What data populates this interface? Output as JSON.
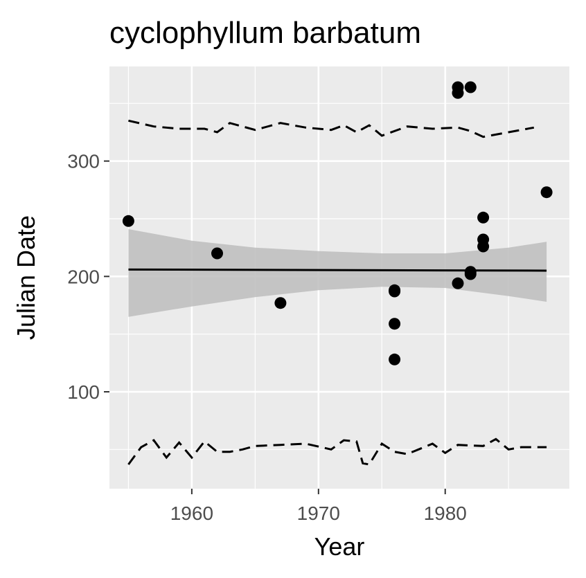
{
  "chart_data": {
    "type": "scatter",
    "title": "cyclophyllum barbatum",
    "xlabel": "Year",
    "ylabel": "Julian Date",
    "xlim": [
      1953.5,
      1989.8
    ],
    "ylim": [
      16,
      382
    ],
    "x_ticks": [
      1960,
      1970,
      1980
    ],
    "x_tick_labels": [
      "1960",
      "1970",
      "1980"
    ],
    "y_ticks": [
      100,
      200,
      300
    ],
    "y_tick_labels": [
      "100",
      "200",
      "300"
    ],
    "grid": true,
    "legend": "none",
    "colors": {
      "panel": "#ebebeb",
      "grid": "#ffffff",
      "points": "#000000",
      "trend": "#000000",
      "band": "#bdbdbd",
      "text": "#000000",
      "ticks": "#4d4d4d"
    },
    "points": [
      {
        "x": 1955,
        "y": 248
      },
      {
        "x": 1962,
        "y": 220
      },
      {
        "x": 1967,
        "y": 177
      },
      {
        "x": 1976,
        "y": 188
      },
      {
        "x": 1976,
        "y": 187
      },
      {
        "x": 1976,
        "y": 159
      },
      {
        "x": 1976,
        "y": 128
      },
      {
        "x": 1981,
        "y": 364
      },
      {
        "x": 1981,
        "y": 359
      },
      {
        "x": 1981,
        "y": 194
      },
      {
        "x": 1982,
        "y": 364
      },
      {
        "x": 1982,
        "y": 204
      },
      {
        "x": 1982,
        "y": 202
      },
      {
        "x": 1983,
        "y": 251
      },
      {
        "x": 1983,
        "y": 232
      },
      {
        "x": 1983,
        "y": 226
      },
      {
        "x": 1988,
        "y": 273
      }
    ],
    "trend_line": {
      "x": [
        1955,
        1988
      ],
      "y": [
        206,
        205
      ]
    },
    "confidence_band": {
      "x": [
        1955,
        1960,
        1965,
        1970,
        1975,
        1980,
        1985,
        1988
      ],
      "lower": [
        165,
        174,
        182,
        188,
        191,
        190,
        183,
        178
      ],
      "upper": [
        241,
        231,
        225,
        222,
        220,
        220,
        225,
        230
      ]
    },
    "upper_dashed": {
      "x": [
        1955,
        1957,
        1959,
        1961,
        1962,
        1963,
        1965,
        1967,
        1969,
        1971,
        1972,
        1973,
        1974,
        1975,
        1977,
        1979,
        1981,
        1982,
        1983,
        1985,
        1987
      ],
      "y": [
        335,
        330,
        328,
        328,
        325,
        333,
        327,
        333,
        329,
        327,
        331,
        325,
        331,
        322,
        330,
        328,
        329,
        326,
        321,
        325,
        329
      ]
    },
    "lower_dashed": {
      "x": [
        1955,
        1956,
        1957,
        1958,
        1959,
        1960,
        1961,
        1962,
        1963,
        1964,
        1965,
        1967,
        1969,
        1971,
        1972,
        1973,
        1973.5,
        1974,
        1975,
        1976,
        1977,
        1979,
        1980,
        1981,
        1983,
        1984,
        1985,
        1986,
        1988
      ],
      "y": [
        37,
        52,
        58,
        43,
        56,
        43,
        57,
        48,
        48,
        50,
        53,
        54,
        55,
        50,
        58,
        57,
        38,
        37,
        55,
        48,
        46,
        55,
        47,
        54,
        53,
        59,
        50,
        52,
        52
      ]
    }
  }
}
